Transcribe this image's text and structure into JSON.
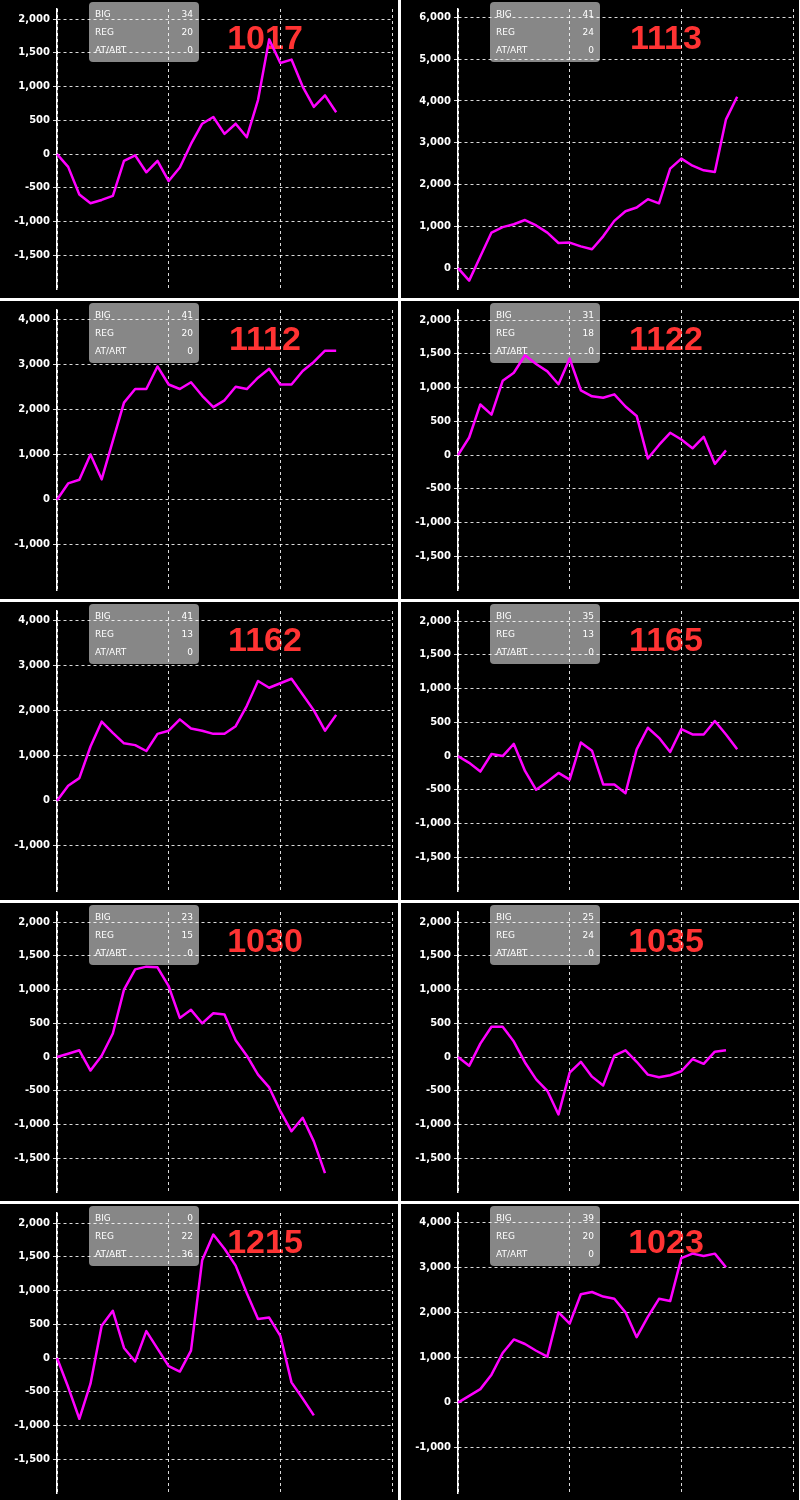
{
  "chart_data": [
    {
      "type": "line",
      "title": "1017",
      "annotations": [
        "BIG",
        "34",
        "REG",
        "20",
        "AT/ART",
        "0"
      ],
      "color": "#ff00ff",
      "grid": true,
      "tick_labels": "y",
      "ylim": [
        -2000,
        2150
      ],
      "yticks": [
        {
          "value": -1500,
          "label": "-1,500"
        },
        {
          "value": -1000,
          "label": "-1,000"
        },
        -500,
        0,
        500,
        {
          "value": 1000,
          "label": "1,000"
        },
        {
          "value": 1500,
          "label": "1,500"
        },
        {
          "value": 2000,
          "label": "2,000"
        }
      ],
      "categories": [
        null,
        null,
        null,
        null,
        null,
        null,
        null,
        null,
        null,
        null,
        null,
        null,
        null,
        null,
        null,
        null,
        null,
        null,
        null,
        null,
        null,
        null,
        null,
        null,
        null,
        null,
        null,
        null,
        null,
        null,
        null
      ],
      "values": [
        0,
        -190,
        -600,
        -730,
        -680,
        -620,
        -100,
        -20,
        -270,
        -100,
        -400,
        -200,
        150,
        450,
        550,
        300,
        450,
        250,
        800,
        1700,
        1350,
        1400,
        1000,
        700,
        870,
        620,
        null,
        null,
        null,
        null,
        null
      ]
    },
    {
      "type": "line",
      "title": "1113",
      "annotations": [
        "BIG",
        "41",
        "REG",
        "24",
        "AT/ART",
        "0"
      ],
      "color": "#ff00ff",
      "grid": true,
      "tick_labels": "y",
      "ylim": [
        -500,
        6200
      ],
      "yticks": [
        0,
        {
          "value": 1000,
          "label": "1,000"
        },
        {
          "value": 2000,
          "label": "2,000"
        },
        {
          "value": 3000,
          "label": "3,000"
        },
        {
          "value": 4000,
          "label": "4,000"
        },
        {
          "value": 5000,
          "label": "5,000"
        },
        {
          "value": 6000,
          "label": "6,000"
        }
      ],
      "categories": [
        null,
        null,
        null,
        null,
        null,
        null,
        null,
        null,
        null,
        null,
        null,
        null,
        null,
        null,
        null,
        null,
        null,
        null,
        null,
        null,
        null,
        null,
        null,
        null,
        null,
        null,
        null,
        null,
        null,
        null,
        null
      ],
      "values": [
        0,
        -300,
        280,
        850,
        980,
        1050,
        1150,
        1020,
        850,
        600,
        610,
        520,
        450,
        760,
        1130,
        1360,
        1450,
        1650,
        1550,
        2380,
        2620,
        2450,
        2340,
        2300,
        3560,
        4100,
        null,
        null,
        null,
        null,
        null
      ]
    },
    {
      "type": "line",
      "title": "1112",
      "annotations": [
        "BIG",
        "41",
        "REG",
        "20",
        "AT/ART",
        "0"
      ],
      "color": "#ff00ff",
      "grid": true,
      "tick_labels": "y",
      "ylim": [
        -2000,
        4200
      ],
      "yticks": [
        {
          "value": -1000,
          "label": "-1,000"
        },
        0,
        {
          "value": 1000,
          "label": "1,000"
        },
        {
          "value": 2000,
          "label": "2,000"
        },
        {
          "value": 3000,
          "label": "3,000"
        },
        {
          "value": 4000,
          "label": "4,000"
        }
      ],
      "categories": [
        null,
        null,
        null,
        null,
        null,
        null,
        null,
        null,
        null,
        null,
        null,
        null,
        null,
        null,
        null,
        null,
        null,
        null,
        null,
        null,
        null,
        null,
        null,
        null,
        null,
        null,
        null,
        null,
        null,
        null,
        null
      ],
      "values": [
        0,
        360,
        440,
        1000,
        450,
        1300,
        2150,
        2450,
        2450,
        2950,
        2550,
        2450,
        2600,
        2300,
        2050,
        2200,
        2500,
        2450,
        2700,
        2900,
        2550,
        2550,
        2850,
        3050,
        3300,
        3300,
        null,
        null,
        null,
        null,
        null
      ]
    },
    {
      "type": "line",
      "title": "1122",
      "annotations": [
        "BIG",
        "31",
        "REG",
        "18",
        "AT/ART",
        "0"
      ],
      "color": "#ff00ff",
      "grid": true,
      "tick_labels": "y",
      "ylim": [
        -2000,
        2150
      ],
      "yticks": [
        {
          "value": -1500,
          "label": "-1,500"
        },
        {
          "value": -1000,
          "label": "-1,000"
        },
        -500,
        0,
        500,
        {
          "value": 1000,
          "label": "1,000"
        },
        {
          "value": 1500,
          "label": "1,500"
        },
        {
          "value": 2000,
          "label": "2,000"
        }
      ],
      "categories": [
        null,
        null,
        null,
        null,
        null,
        null,
        null,
        null,
        null,
        null,
        null,
        null,
        null,
        null,
        null,
        null,
        null,
        null,
        null,
        null,
        null,
        null,
        null,
        null,
        null,
        null,
        null,
        null,
        null,
        null,
        null
      ],
      "values": [
        0,
        260,
        750,
        600,
        1100,
        1220,
        1480,
        1350,
        1240,
        1050,
        1430,
        960,
        870,
        850,
        900,
        720,
        580,
        -50,
        150,
        330,
        230,
        100,
        270,
        -130,
        70,
        null,
        null,
        null,
        null,
        null,
        null
      ]
    },
    {
      "type": "line",
      "title": "1162",
      "annotations": [
        "BIG",
        "41",
        "REG",
        "13",
        "AT/ART",
        "0"
      ],
      "color": "#ff00ff",
      "grid": true,
      "tick_labels": "y",
      "ylim": [
        -2000,
        4200
      ],
      "yticks": [
        {
          "value": -1000,
          "label": "-1,000"
        },
        0,
        {
          "value": 1000,
          "label": "1,000"
        },
        {
          "value": 2000,
          "label": "2,000"
        },
        {
          "value": 3000,
          "label": "3,000"
        },
        {
          "value": 4000,
          "label": "4,000"
        }
      ],
      "categories": [
        null,
        null,
        null,
        null,
        null,
        null,
        null,
        null,
        null,
        null,
        null,
        null,
        null,
        null,
        null,
        null,
        null,
        null,
        null,
        null,
        null,
        null,
        null,
        null,
        null,
        null,
        null,
        null,
        null,
        null,
        null
      ],
      "values": [
        0,
        330,
        500,
        1200,
        1750,
        1500,
        1270,
        1230,
        1100,
        1480,
        1550,
        1800,
        1600,
        1550,
        1480,
        1480,
        1650,
        2100,
        2650,
        2500,
        2600,
        2700,
        2350,
        2000,
        1550,
        1900,
        null,
        null,
        null,
        null,
        null
      ]
    },
    {
      "type": "line",
      "title": "1165",
      "annotations": [
        "BIG",
        "35",
        "REG",
        "13",
        "AT/ART",
        "0"
      ],
      "color": "#ff00ff",
      "grid": true,
      "tick_labels": "y",
      "ylim": [
        -2000,
        2150
      ],
      "yticks": [
        {
          "value": -1500,
          "label": "-1,500"
        },
        {
          "value": -1000,
          "label": "-1,000"
        },
        -500,
        0,
        500,
        {
          "value": 1000,
          "label": "1,000"
        },
        {
          "value": 1500,
          "label": "1,500"
        },
        {
          "value": 2000,
          "label": "2,000"
        }
      ],
      "categories": [
        null,
        null,
        null,
        null,
        null,
        null,
        null,
        null,
        null,
        null,
        null,
        null,
        null,
        null,
        null,
        null,
        null,
        null,
        null,
        null,
        null,
        null,
        null,
        null,
        null,
        null,
        null,
        null,
        null,
        null,
        null
      ],
      "values": [
        0,
        -100,
        -230,
        30,
        0,
        180,
        -220,
        -500,
        -380,
        -250,
        -350,
        200,
        80,
        -420,
        -420,
        -550,
        100,
        420,
        270,
        60,
        400,
        320,
        320,
        520,
        320,
        100,
        null,
        null,
        null,
        null,
        null
      ]
    },
    {
      "type": "line",
      "title": "1030",
      "annotations": [
        "BIG",
        "23",
        "REG",
        "15",
        "AT/ART",
        "0"
      ],
      "color": "#ff00ff",
      "grid": true,
      "tick_labels": "y",
      "ylim": [
        -2000,
        2150
      ],
      "yticks": [
        {
          "value": -1500,
          "label": "-1,500"
        },
        {
          "value": -1000,
          "label": "-1,000"
        },
        -500,
        0,
        500,
        {
          "value": 1000,
          "label": "1,000"
        },
        {
          "value": 1500,
          "label": "1,500"
        },
        {
          "value": 2000,
          "label": "2,000"
        }
      ],
      "categories": [
        null,
        null,
        null,
        null,
        null,
        null,
        null,
        null,
        null,
        null,
        null,
        null,
        null,
        null,
        null,
        null,
        null,
        null,
        null,
        null,
        null,
        null,
        null,
        null,
        null,
        null,
        null,
        null,
        null,
        null,
        null
      ],
      "values": [
        0,
        50,
        100,
        -200,
        20,
        350,
        1000,
        1300,
        1340,
        1330,
        1050,
        580,
        700,
        500,
        650,
        630,
        250,
        20,
        -260,
        -450,
        -800,
        -1100,
        -900,
        -1250,
        -1720,
        null,
        null,
        null,
        null,
        null,
        null
      ]
    },
    {
      "type": "line",
      "title": "1035",
      "annotations": [
        "BIG",
        "25",
        "REG",
        "24",
        "AT/ART",
        "0"
      ],
      "color": "#ff00ff",
      "grid": true,
      "tick_labels": "y",
      "ylim": [
        -2000,
        2150
      ],
      "yticks": [
        {
          "value": -1500,
          "label": "-1,500"
        },
        {
          "value": -1000,
          "label": "-1,000"
        },
        -500,
        0,
        500,
        {
          "value": 1000,
          "label": "1,000"
        },
        {
          "value": 1500,
          "label": "1,500"
        },
        {
          "value": 2000,
          "label": "2,000"
        }
      ],
      "categories": [
        null,
        null,
        null,
        null,
        null,
        null,
        null,
        null,
        null,
        null,
        null,
        null,
        null,
        null,
        null,
        null,
        null,
        null,
        null,
        null,
        null,
        null,
        null,
        null,
        null,
        null,
        null,
        null,
        null,
        null,
        null
      ],
      "values": [
        0,
        -130,
        200,
        450,
        450,
        230,
        -80,
        -330,
        -500,
        -850,
        -230,
        -70,
        -290,
        -420,
        20,
        100,
        -70,
        -260,
        -300,
        -270,
        -210,
        -30,
        -100,
        80,
        100,
        null,
        null,
        null,
        null,
        null,
        null
      ]
    },
    {
      "type": "line",
      "title": "1215",
      "annotations": [
        "BIG",
        "0",
        "REG",
        "22",
        "AT/ART",
        "36"
      ],
      "color": "#ff00ff",
      "grid": true,
      "tick_labels": "y",
      "ylim": [
        -2000,
        2150
      ],
      "yticks": [
        {
          "value": -1500,
          "label": "-1,500"
        },
        {
          "value": -1000,
          "label": "-1,000"
        },
        -500,
        0,
        500,
        {
          "value": 1000,
          "label": "1,000"
        },
        {
          "value": 1500,
          "label": "1,500"
        },
        {
          "value": 2000,
          "label": "2,000"
        }
      ],
      "categories": [
        null,
        null,
        null,
        null,
        null,
        null,
        null,
        null,
        null,
        null,
        null,
        null,
        null,
        null,
        null,
        null,
        null,
        null,
        null,
        null,
        null,
        null,
        null,
        null,
        null,
        null,
        null,
        null,
        null,
        null,
        null
      ],
      "values": [
        0,
        -430,
        -900,
        -380,
        480,
        700,
        150,
        -50,
        400,
        140,
        -120,
        -200,
        110,
        1450,
        1830,
        1620,
        1370,
        960,
        580,
        600,
        330,
        -360,
        -600,
        -850,
        null,
        null,
        null,
        null,
        null,
        null,
        null
      ]
    },
    {
      "type": "line",
      "title": "1023",
      "annotations": [
        "BIG",
        "39",
        "REG",
        "20",
        "AT/ART",
        "0"
      ],
      "color": "#ff00ff",
      "grid": true,
      "tick_labels": "y",
      "ylim": [
        -2000,
        4200
      ],
      "yticks": [
        {
          "value": -1000,
          "label": "-1,000"
        },
        0,
        {
          "value": 1000,
          "label": "1,000"
        },
        {
          "value": 2000,
          "label": "2,000"
        },
        {
          "value": 3000,
          "label": "3,000"
        },
        {
          "value": 4000,
          "label": "4,000"
        }
      ],
      "categories": [
        null,
        null,
        null,
        null,
        null,
        null,
        null,
        null,
        null,
        null,
        null,
        null,
        null,
        null,
        null,
        null,
        null,
        null,
        null,
        null,
        null,
        null,
        null,
        null,
        null,
        null,
        null,
        null,
        null,
        null,
        null
      ],
      "values": [
        0,
        150,
        300,
        620,
        1100,
        1400,
        1300,
        1150,
        1020,
        2000,
        1750,
        2400,
        2450,
        2350,
        2300,
        2000,
        1450,
        1900,
        2300,
        2250,
        3200,
        3300,
        3250,
        3300,
        3000,
        null,
        null,
        null,
        null,
        null,
        null
      ]
    }
  ]
}
